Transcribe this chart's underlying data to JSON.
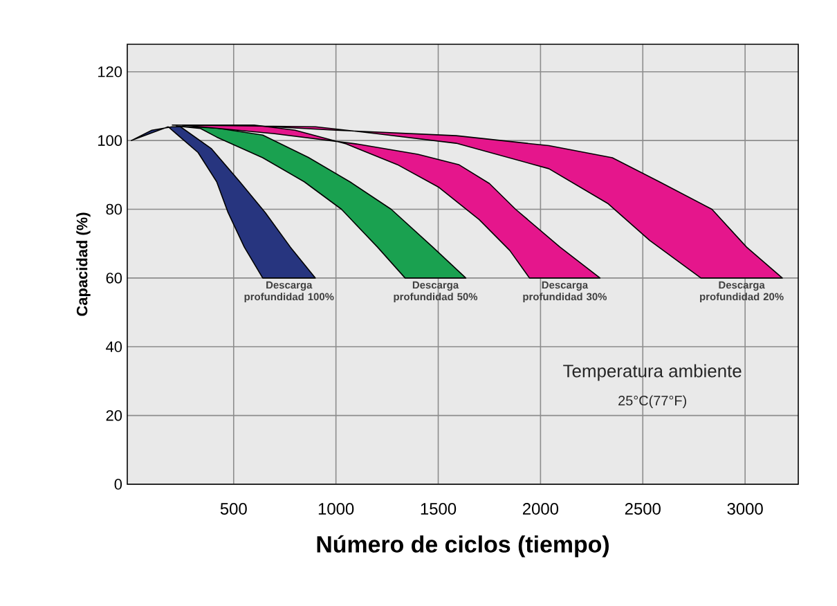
{
  "chart_data": {
    "type": "area",
    "xlabel": "Número de ciclos (tiempo)",
    "ylabel": "Capacidad (%)",
    "xlim": [
      -20,
      3260
    ],
    "ylim": [
      0,
      128
    ],
    "xticks": [
      500,
      1000,
      1500,
      2000,
      2500,
      3000
    ],
    "yticks": [
      0,
      20,
      40,
      60,
      80,
      100,
      120
    ],
    "grid": true,
    "series": [
      {
        "name": "Descarga profundidad 100%",
        "color": "#27357f",
        "x": [
          0,
          100,
          200,
          240,
          390,
          530,
          655,
          777,
          899,
          642,
          552,
          473,
          417,
          326,
          180,
          0
        ],
        "values": [
          100,
          103,
          104,
          104,
          97.7,
          88,
          79,
          69,
          60,
          60,
          69,
          79,
          88,
          96.5,
          104,
          100
        ]
      },
      {
        "name": "Descarga profundidad 50%",
        "color": "#1aa150",
        "x": [
          220,
          420,
          642,
          865,
          1068,
          1270,
          1473,
          1635,
          1338,
          1203,
          1027,
          845,
          642,
          417,
          338,
          220
        ],
        "values": [
          104.2,
          103.6,
          101.6,
          95.1,
          88,
          80,
          69,
          60,
          60,
          69,
          80,
          88,
          95,
          101,
          103.5,
          104.2
        ]
      },
      {
        "name": "Descarga profundidad 30%",
        "color": "#e5168c",
        "x": [
          250,
          700,
          1100,
          1400,
          1600,
          1750,
          1878,
          2095,
          2291,
          1946,
          1850,
          1700,
          1500,
          1300,
          1050,
          800,
          600,
          250
        ],
        "values": [
          104.5,
          102,
          99,
          96,
          93,
          87.5,
          80,
          69,
          60,
          60,
          68,
          77,
          86.5,
          93,
          99,
          103,
          104.5,
          104.5
        ]
      },
      {
        "name": "Descarga profundidad 20%",
        "color": "#e5168c",
        "x": [
          200,
          600,
          1000,
          1588,
          2041,
          2351,
          2581,
          2838,
          3007,
          3182,
          2784,
          2534,
          2331,
          2041,
          1588,
          1200,
          900,
          200
        ],
        "values": [
          104.5,
          104.3,
          103,
          101.4,
          98.5,
          95,
          88,
          80,
          69,
          60,
          60,
          70.9,
          81.6,
          91.8,
          99.2,
          102,
          104,
          104.5
        ]
      }
    ],
    "annotations": [
      "Temperatura ambiente",
      "25°C(77°F)"
    ]
  }
}
